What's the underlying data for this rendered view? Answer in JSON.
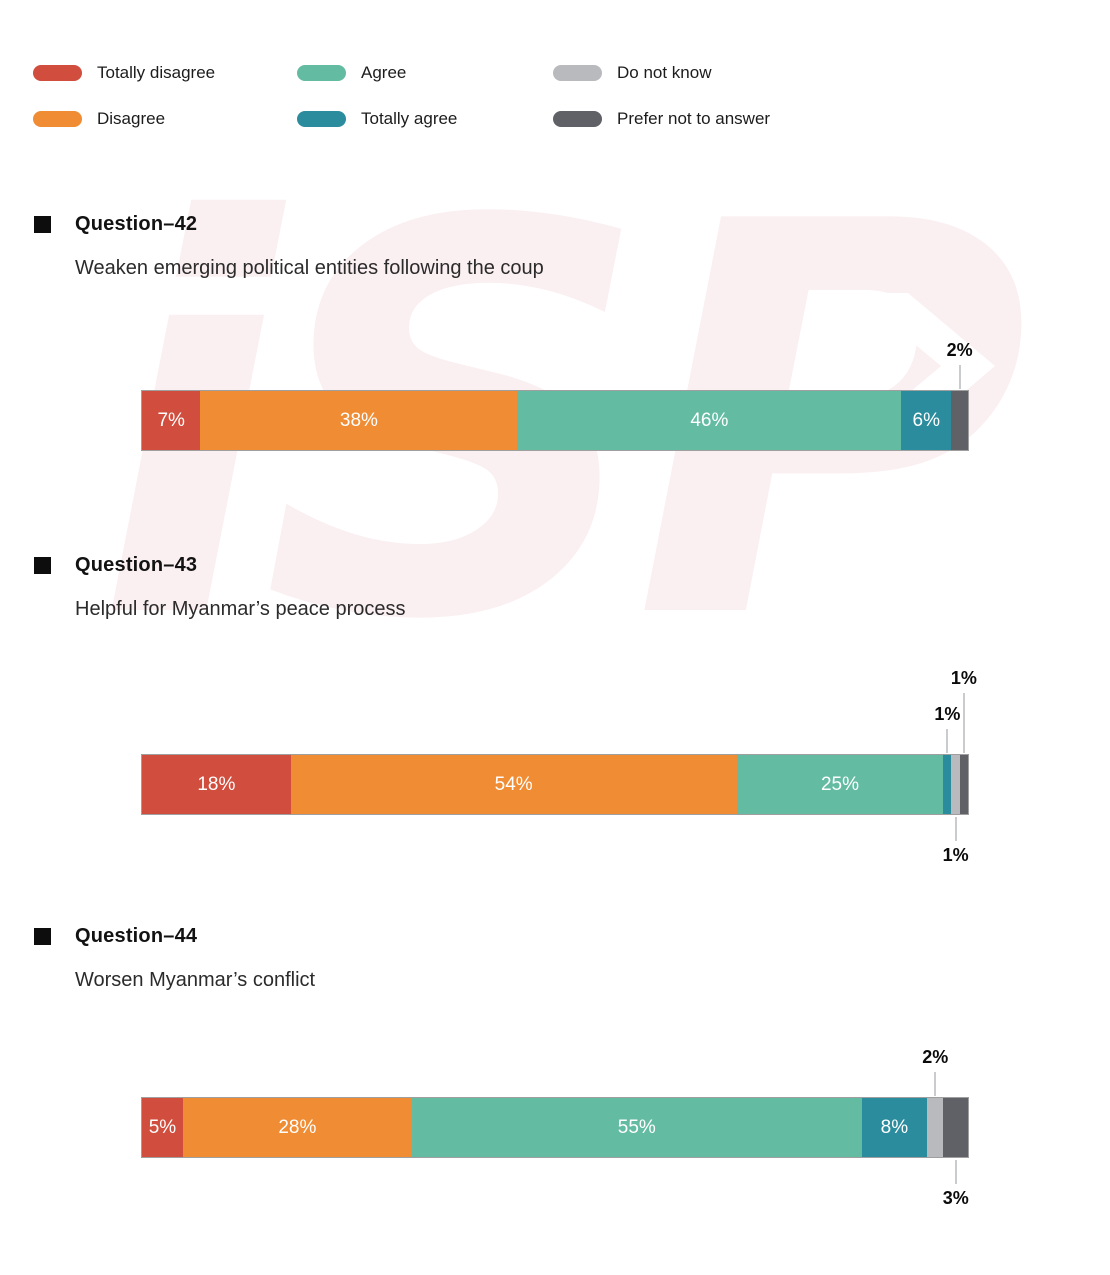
{
  "watermark": {
    "text": "iSP"
  },
  "legend": {
    "items": [
      {
        "label": "Totally disagree",
        "color": "#D14D3D"
      },
      {
        "label": "Disagree",
        "color": "#F08C33"
      },
      {
        "label": "Agree",
        "color": "#63BCA2"
      },
      {
        "label": "Totally agree",
        "color": "#2B8C9E"
      },
      {
        "label": "Do not know",
        "color": "#B9BABE"
      },
      {
        "label": "Prefer not to answer",
        "color": "#5F6166"
      }
    ]
  },
  "chart_data": [
    {
      "type": "bar",
      "orientation": "horizontal",
      "stacked": true,
      "unit": "percent",
      "title": "Question–42",
      "subtitle": "Weaken emerging political entities following the coup",
      "categories": [
        "Totally disagree",
        "Disagree",
        "Agree",
        "Totally agree",
        "Do not know",
        "Prefer not to answer"
      ],
      "values": [
        7,
        38,
        46,
        6,
        0,
        2
      ],
      "inside_labels": [
        "7%",
        "38%",
        "46%",
        "6%",
        null,
        null
      ],
      "callouts": [
        {
          "segment_index": 5,
          "category": "Prefer not to answer",
          "label": "2%",
          "position": "above",
          "level": 1
        }
      ]
    },
    {
      "type": "bar",
      "orientation": "horizontal",
      "stacked": true,
      "unit": "percent",
      "title": "Question–43",
      "subtitle": "Helpful for Myanmar’s peace process",
      "categories": [
        "Totally disagree",
        "Disagree",
        "Agree",
        "Totally agree",
        "Do not know",
        "Prefer not to answer"
      ],
      "values": [
        18,
        54,
        25,
        1,
        1,
        1
      ],
      "inside_labels": [
        "18%",
        "54%",
        "25%",
        null,
        null,
        null
      ],
      "callouts": [
        {
          "segment_index": 3,
          "category": "Totally agree",
          "label": "1%",
          "position": "above",
          "level": 1
        },
        {
          "segment_index": 4,
          "category": "Do not know",
          "label": "1%",
          "position": "below",
          "level": 1
        },
        {
          "segment_index": 5,
          "category": "Prefer not to answer",
          "label": "1%",
          "position": "above",
          "level": 2
        }
      ]
    },
    {
      "type": "bar",
      "orientation": "horizontal",
      "stacked": true,
      "unit": "percent",
      "title": "Question–44",
      "subtitle": "Worsen Myanmar’s conflict",
      "categories": [
        "Totally disagree",
        "Disagree",
        "Agree",
        "Totally agree",
        "Do not know",
        "Prefer not to answer"
      ],
      "values": [
        5,
        28,
        55,
        8,
        2,
        3
      ],
      "inside_labels": [
        "5%",
        "28%",
        "55%",
        "8%",
        null,
        null
      ],
      "callouts": [
        {
          "segment_index": 4,
          "category": "Do not know",
          "label": "2%",
          "position": "above",
          "level": 1
        },
        {
          "segment_index": 5,
          "category": "Prefer not to answer",
          "label": "3%",
          "position": "below",
          "level": 1
        }
      ]
    }
  ]
}
